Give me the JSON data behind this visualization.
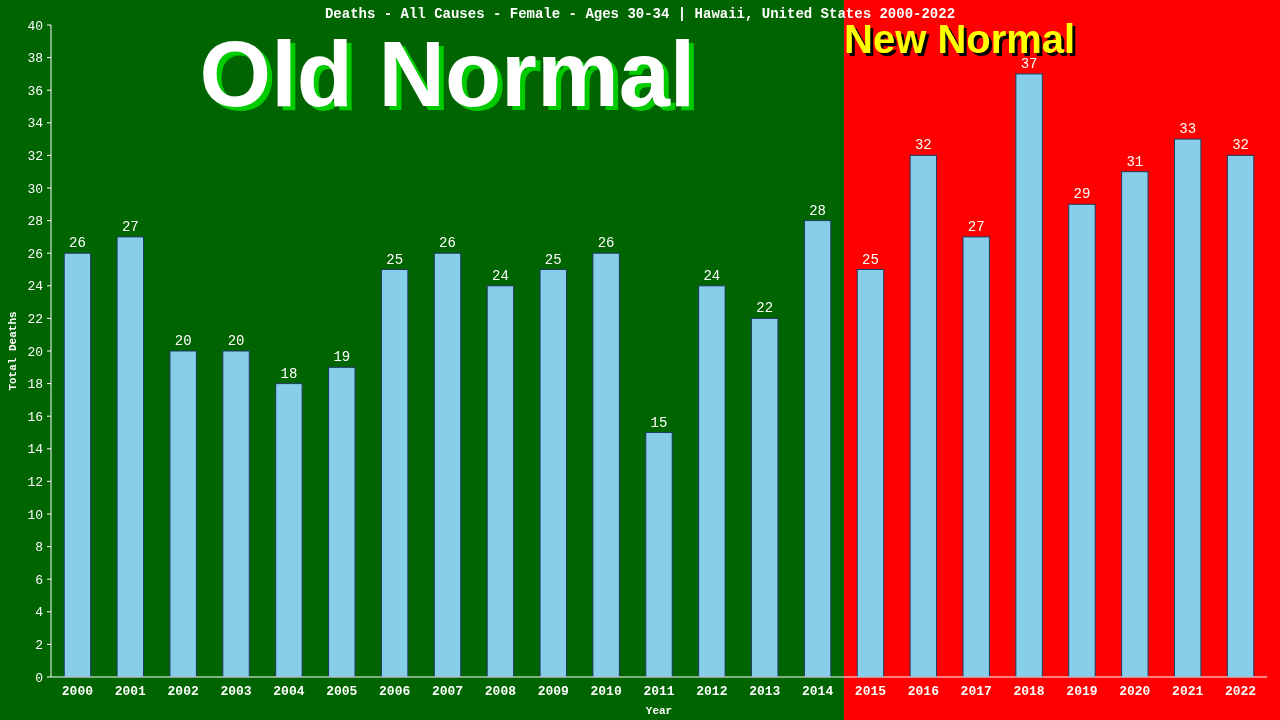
{
  "chart_data": {
    "type": "bar",
    "title": "Deaths - All Causes - Female - Ages 30-34 | Hawaii, United States 2000-2022",
    "xlabel": "Year",
    "ylabel": "Total Deaths",
    "categories": [
      "2000",
      "2001",
      "2002",
      "2003",
      "2004",
      "2005",
      "2006",
      "2007",
      "2008",
      "2009",
      "2010",
      "2011",
      "2012",
      "2013",
      "2014",
      "2015",
      "2016",
      "2017",
      "2018",
      "2019",
      "2020",
      "2021",
      "2022"
    ],
    "values": [
      26,
      27,
      20,
      20,
      18,
      19,
      25,
      26,
      24,
      25,
      26,
      15,
      24,
      22,
      28,
      25,
      32,
      27,
      37,
      29,
      31,
      33,
      32
    ],
    "color": "#87ceeb",
    "data_labels": true,
    "ylim": [
      0,
      40
    ],
    "yticks": [
      0,
      2,
      4,
      6,
      8,
      10,
      12,
      14,
      16,
      18,
      20,
      22,
      24,
      26,
      28,
      30,
      32,
      34,
      36,
      38,
      40
    ],
    "grid": false,
    "bands": [
      {
        "axis": "x",
        "from": "2000",
        "to": "2014",
        "label": "Old Normal",
        "color": "#006400"
      },
      {
        "axis": "x",
        "from": "2015",
        "to": "2022",
        "label": "New Normal",
        "color": "#ff0000"
      }
    ]
  }
}
